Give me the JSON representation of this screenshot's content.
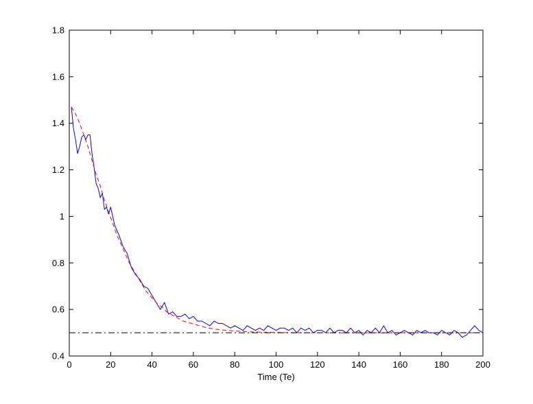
{
  "chart_data": {
    "type": "line",
    "title": "",
    "xlabel": "Time (Te)",
    "ylabel": "",
    "xlim": [
      0,
      200
    ],
    "ylim": [
      0.4,
      1.8
    ],
    "xticks": [
      0,
      20,
      40,
      60,
      80,
      100,
      120,
      140,
      160,
      180,
      200
    ],
    "xtick_labels": [
      "0",
      "20",
      "40",
      "60",
      "80",
      "100",
      "120",
      "140",
      "160",
      "180",
      "200"
    ],
    "yticks": [
      0.4,
      0.6,
      0.8,
      1.0,
      1.2,
      1.4,
      1.6,
      1.8
    ],
    "ytick_labels": [
      "0.4",
      "0.6",
      "0.8",
      "1",
      "1.2",
      "1.4",
      "1.6",
      "1.8"
    ],
    "grid": false,
    "legend": "none",
    "series": [
      {
        "style": "solid",
        "color": "#0000ff",
        "x": [
          1,
          2,
          3,
          4,
          5,
          6,
          7,
          8,
          9,
          10,
          11,
          12,
          13,
          14,
          15,
          16,
          17,
          18,
          19,
          20,
          22,
          24,
          26,
          28,
          30,
          32,
          34,
          36,
          38,
          40,
          42,
          44,
          46,
          48,
          50,
          52,
          54,
          56,
          58,
          60,
          62,
          64,
          66,
          68,
          70,
          72,
          74,
          76,
          78,
          80,
          82,
          84,
          86,
          88,
          90,
          92,
          94,
          96,
          98,
          100,
          102,
          104,
          106,
          108,
          110,
          112,
          114,
          116,
          118,
          120,
          122,
          124,
          126,
          128,
          130,
          132,
          134,
          136,
          138,
          140,
          142,
          144,
          146,
          148,
          150,
          152,
          154,
          156,
          158,
          160,
          162,
          164,
          166,
          168,
          170,
          172,
          174,
          176,
          178,
          180,
          182,
          184,
          186,
          188,
          190,
          192,
          194,
          196,
          198,
          200
        ],
        "y": [
          1.47,
          1.38,
          1.33,
          1.27,
          1.3,
          1.34,
          1.35,
          1.33,
          1.35,
          1.35,
          1.27,
          1.21,
          1.14,
          1.12,
          1.08,
          1.1,
          1.03,
          1.04,
          1.01,
          1.04,
          0.96,
          0.92,
          0.87,
          0.84,
          0.78,
          0.75,
          0.73,
          0.7,
          0.69,
          0.66,
          0.63,
          0.6,
          0.63,
          0.58,
          0.59,
          0.57,
          0.57,
          0.58,
          0.56,
          0.57,
          0.55,
          0.55,
          0.54,
          0.53,
          0.55,
          0.54,
          0.54,
          0.53,
          0.52,
          0.53,
          0.52,
          0.51,
          0.53,
          0.52,
          0.51,
          0.52,
          0.51,
          0.53,
          0.52,
          0.51,
          0.52,
          0.52,
          0.51,
          0.52,
          0.5,
          0.52,
          0.51,
          0.52,
          0.5,
          0.51,
          0.51,
          0.5,
          0.52,
          0.5,
          0.51,
          0.51,
          0.5,
          0.52,
          0.5,
          0.51,
          0.49,
          0.51,
          0.5,
          0.52,
          0.5,
          0.53,
          0.5,
          0.51,
          0.49,
          0.5,
          0.51,
          0.5,
          0.49,
          0.51,
          0.5,
          0.51,
          0.5,
          0.5,
          0.49,
          0.51,
          0.5,
          0.49,
          0.51,
          0.5,
          0.48,
          0.49,
          0.51,
          0.53,
          0.51,
          0.5
        ]
      },
      {
        "style": "dashed",
        "color": "#ff0000",
        "x": [
          1,
          3,
          5,
          7,
          9,
          11,
          13,
          15,
          17,
          19,
          21,
          23,
          25,
          27,
          29,
          31,
          33,
          35,
          37,
          39,
          41,
          43,
          45,
          47,
          49,
          51,
          53,
          55,
          57,
          59,
          61,
          63,
          65,
          67,
          69,
          71,
          73,
          75,
          77,
          79,
          81,
          83,
          85,
          87,
          89,
          91,
          93,
          95,
          97,
          99,
          101,
          105,
          110,
          115,
          120,
          125,
          130,
          140,
          150,
          160,
          170,
          180,
          190,
          200
        ],
        "y": [
          1.47,
          1.44,
          1.4,
          1.35,
          1.3,
          1.24,
          1.18,
          1.13,
          1.07,
          1.02,
          0.97,
          0.92,
          0.88,
          0.84,
          0.8,
          0.77,
          0.74,
          0.71,
          0.68,
          0.66,
          0.64,
          0.62,
          0.61,
          0.59,
          0.58,
          0.57,
          0.56,
          0.55,
          0.545,
          0.54,
          0.535,
          0.53,
          0.525,
          0.52,
          0.518,
          0.515,
          0.513,
          0.511,
          0.51,
          0.508,
          0.507,
          0.506,
          0.505,
          0.504,
          0.503,
          0.503,
          0.502,
          0.502,
          0.502,
          0.501,
          0.501,
          0.5005,
          0.5003,
          0.5002,
          0.5001,
          0.5,
          0.5,
          0.5,
          0.5,
          0.5,
          0.5,
          0.5,
          0.5,
          0.5
        ]
      },
      {
        "style": "dashdot",
        "color": "#000000",
        "x": [
          0,
          200
        ],
        "y": [
          0.5,
          0.5
        ]
      }
    ]
  }
}
